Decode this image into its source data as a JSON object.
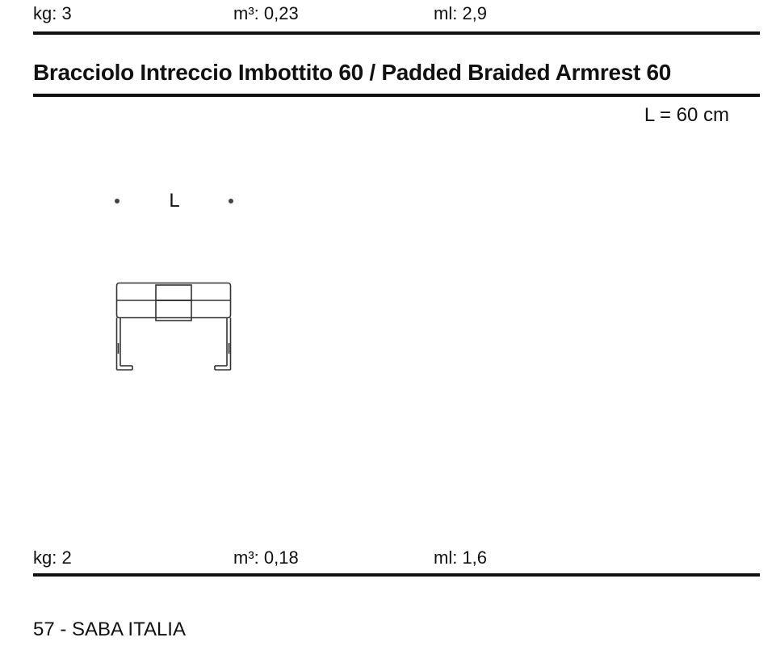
{
  "previous_item": {
    "kg": "kg: 3",
    "m3": "m³: 0,23",
    "ml": "ml: 2,9"
  },
  "item": {
    "title": "Bracciolo Intreccio Imbottito 60 / Padded Braided Armrest 60",
    "dimension": "L = 60 cm",
    "dimension_label": "L",
    "specs": {
      "kg": "kg: 2",
      "m3": "m³: 0,18",
      "ml": "ml: 1,6"
    }
  },
  "footer": "57 - SABA ITALIA"
}
